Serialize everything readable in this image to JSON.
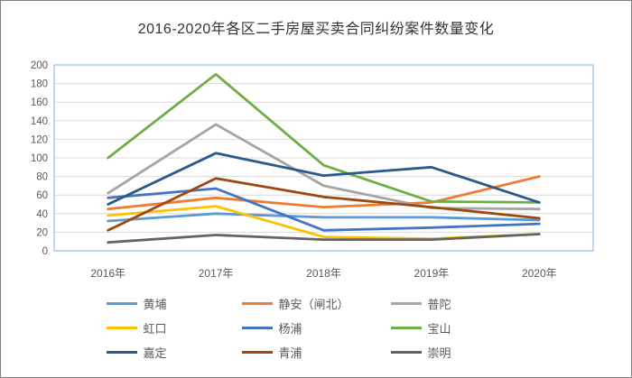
{
  "window": {
    "border_color": "#808080",
    "background": "#ffffff"
  },
  "chart_data": {
    "type": "line",
    "title": "2016-2020年各区二手房屋买卖合同纠纷案件数量变化",
    "categories": [
      "2016年",
      "2017年",
      "2018年",
      "2019年",
      "2020年"
    ],
    "series": [
      {
        "name": "黄埔",
        "color": "#5B9BD5",
        "values": [
          32,
          40,
          36,
          36,
          33
        ]
      },
      {
        "name": "静安（闸北）",
        "color": "#ED7D31",
        "values": [
          45,
          57,
          47,
          52,
          80
        ]
      },
      {
        "name": "普陀",
        "color": "#A5A5A5",
        "values": [
          62,
          136,
          70,
          46,
          45
        ]
      },
      {
        "name": "虹口",
        "color": "#FFC000",
        "values": [
          38,
          48,
          15,
          13,
          18
        ]
      },
      {
        "name": "杨浦",
        "color": "#4472C4",
        "values": [
          57,
          67,
          22,
          25,
          29
        ]
      },
      {
        "name": "宝山",
        "color": "#70AD47",
        "values": [
          100,
          190,
          92,
          53,
          52
        ]
      },
      {
        "name": "嘉定",
        "color": "#2A5A8C",
        "values": [
          50,
          105,
          81,
          90,
          52
        ]
      },
      {
        "name": "青浦",
        "color": "#9E480E",
        "values": [
          22,
          78,
          58,
          47,
          35
        ]
      },
      {
        "name": "崇明",
        "color": "#636363",
        "values": [
          9,
          17,
          12,
          12,
          18
        ]
      }
    ],
    "ylim": [
      0,
      200
    ],
    "ytick_step": 20,
    "grid": true,
    "legend_position": "bottom",
    "axis_text_color": "#595959",
    "grid_color": "#D9D9D9",
    "frame_color": "#9DC3E6",
    "title_color": "#333333"
  }
}
